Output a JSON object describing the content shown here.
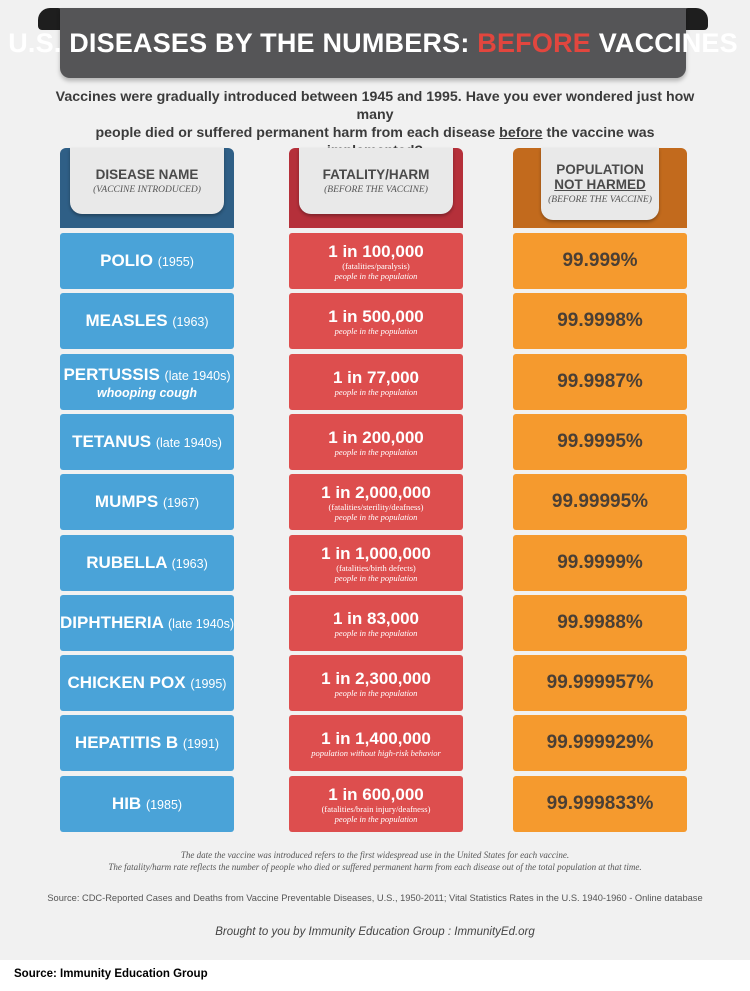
{
  "banner": {
    "title_prefix": "U.S. DISEASES BY THE NUMBERS:",
    "title_highlight": "BEFORE",
    "title_suffix": "VACCINES"
  },
  "intro": {
    "line1": "Vaccines were gradually introduced between 1945 and 1995.  Have you ever wondered just how many",
    "line2_a": "people died or suffered permanent harm from each disease",
    "line2_b": "before",
    "line2_c": "the vaccine was implemented?"
  },
  "headers": {
    "disease": {
      "title": "DISEASE NAME",
      "sub": "(VACCINE INTRODUCED)"
    },
    "fatality": {
      "title": "FATALITY/HARM",
      "sub": "(BEFORE THE VACCINE)"
    },
    "population": {
      "title1": "POPULATION",
      "title2": "NOT HARMED",
      "sub": "(BEFORE THE VACCINE)"
    }
  },
  "rows": [
    {
      "name": "POLIO",
      "year": "(1955)",
      "sub": "",
      "ratio": "1 in 100,000",
      "note1": "(fatalities/paralysis)",
      "note2": "people in the population",
      "pop": "99.999%"
    },
    {
      "name": "MEASLES",
      "year": "(1963)",
      "sub": "",
      "ratio": "1 in 500,000",
      "note1": "",
      "note2": "people in the population",
      "pop": "99.9998%"
    },
    {
      "name": "PERTUSSIS",
      "year": "(late 1940s)",
      "sub": "whooping cough",
      "ratio": "1 in 77,000",
      "note1": "",
      "note2": "people in the population",
      "pop": "99.9987%"
    },
    {
      "name": "TETANUS",
      "year": "(late 1940s)",
      "sub": "",
      "ratio": "1 in 200,000",
      "note1": "",
      "note2": "people in the population",
      "pop": "99.9995%"
    },
    {
      "name": "MUMPS",
      "year": "(1967)",
      "sub": "",
      "ratio": "1 in 2,000,000",
      "note1": "(fatalities/sterility/deafness)",
      "note2": "people in the population",
      "pop": "99.99995%"
    },
    {
      "name": "RUBELLA",
      "year": "(1963)",
      "sub": "",
      "ratio": "1 in 1,000,000",
      "note1": "(fatalities/birth defects)",
      "note2": "people in the population",
      "pop": "99.9999%"
    },
    {
      "name": "DIPHTHERIA",
      "year": "(late 1940s)",
      "sub": "",
      "ratio": "1 in 83,000",
      "note1": "",
      "note2": "people in the population",
      "pop": "99.9988%"
    },
    {
      "name": "CHICKEN POX",
      "year": "(1995)",
      "sub": "",
      "ratio": "1 in 2,300,000",
      "note1": "",
      "note2": "people in the population",
      "pop": "99.999957%"
    },
    {
      "name": "HEPATITIS B",
      "year": "(1991)",
      "sub": "",
      "ratio": "1 in 1,400,000",
      "note1": "",
      "note2": "population without high-risk behavior",
      "pop": "99.999929%"
    },
    {
      "name": "HIB",
      "year": "(1985)",
      "sub": "",
      "ratio": "1 in 600,000",
      "note1": "(fatalities/brain injury/deafness)",
      "note2": "people in the population",
      "pop": "99.999833%"
    }
  ],
  "footer": {
    "note1": "The date the vaccine was introduced refers to the first widespread use in the United States for each vaccine.",
    "note2": "The fatality/harm rate reflects the number of people who died or suffered permanent harm from each disease out of the total population at that time.",
    "source_line": "Source: CDC-Reported Cases and Deaths from Vaccine Preventable Diseases, U.S., 1950-2011; Vital Statistics Rates in the U.S. 1940-1960 - Online database",
    "brought": "Brought to you by Immunity Education Group : ImmunityEd.org"
  },
  "caption": "Source: Immunity Education Group",
  "colors": {
    "banner": "#555557",
    "highlight": "#e2463e",
    "disease_blue": "#4aa3d8",
    "fatality_red": "#dd4e4e",
    "population_orange": "#f59a2e"
  }
}
